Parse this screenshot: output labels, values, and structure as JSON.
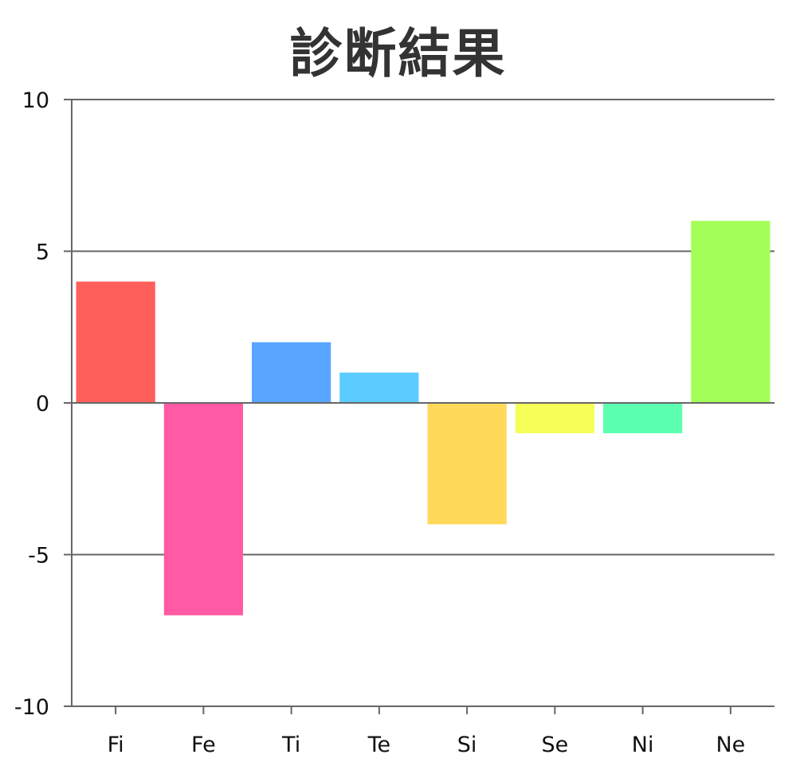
{
  "chart_data": {
    "type": "bar",
    "title": "診断結果",
    "categories": [
      "Fi",
      "Fe",
      "Ti",
      "Te",
      "Si",
      "Se",
      "Ni",
      "Ne"
    ],
    "values": [
      4,
      -7,
      2,
      1,
      -4,
      -1,
      -1,
      6
    ],
    "colors": [
      "#ff5f5a",
      "#ff5aa3",
      "#58a6ff",
      "#5ccbff",
      "#ffd95a",
      "#f6ff58",
      "#5cffb0",
      "#a3ff58"
    ],
    "ylim": [
      -10,
      10
    ],
    "yticks": [
      -10,
      -5,
      0,
      5,
      10
    ],
    "ytick_labels": [
      "-10",
      "-5",
      "0",
      "5",
      "10"
    ],
    "grid": true,
    "xlabel": "",
    "ylabel": ""
  }
}
